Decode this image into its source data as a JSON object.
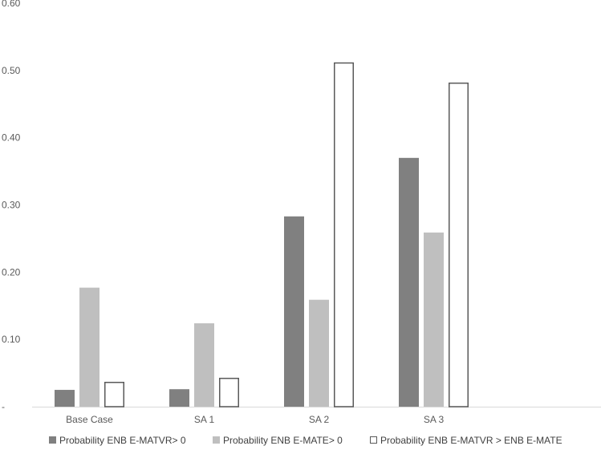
{
  "chart_data": {
    "type": "bar",
    "title": "",
    "xlabel": "",
    "ylabel": "",
    "ylim": [
      0,
      0.6
    ],
    "yticks": [
      {
        "value": 0,
        "label": "-"
      },
      {
        "value": 0.1,
        "label": "0.10"
      },
      {
        "value": 0.2,
        "label": "0.20"
      },
      {
        "value": 0.3,
        "label": "0.30"
      },
      {
        "value": 0.4,
        "label": "0.40"
      },
      {
        "value": 0.5,
        "label": "0.50"
      },
      {
        "value": 0.6,
        "label": "0.60"
      }
    ],
    "categories": [
      "Base Case",
      "SA 1",
      "SA 2",
      "SA 3",
      ""
    ],
    "grid": false,
    "legend_position": "bottom",
    "series": [
      {
        "name": "Probability ENB E-MATVR> 0",
        "values": [
          0.025,
          0.026,
          0.283,
          0.37,
          null
        ],
        "fill": "#808080",
        "stroke": "#808080"
      },
      {
        "name": "Probability ENB E-MATE> 0",
        "values": [
          0.177,
          0.124,
          0.159,
          0.259,
          null
        ],
        "fill": "#bfbfbf",
        "stroke": "#bfbfbf"
      },
      {
        "name": "Probability ENB E-MATVR > ENB E-MATE",
        "values": [
          0.037,
          0.043,
          0.512,
          0.482,
          null
        ],
        "fill": "#ffffff",
        "stroke": "#595959"
      }
    ]
  }
}
